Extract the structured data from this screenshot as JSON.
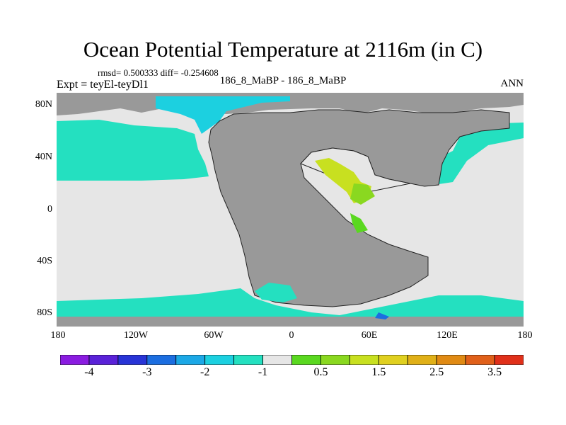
{
  "title": "Ocean Potential Temperature at 2116m (in C)",
  "stats": "rmsd= 0.500333 diff= -0.254608",
  "expt": "Expt = teyEl-teyDl1",
  "case_label": "186_8_MaBP - 186_8_MaBP",
  "season": "ANN",
  "lat_labels": [
    "80N",
    "40N",
    "0",
    "40S",
    "80S"
  ],
  "lon_labels": [
    "180",
    "120W",
    "60W",
    "0",
    "60E",
    "120E",
    "180"
  ],
  "colorbar": {
    "labels": [
      "-4",
      "-3",
      "-2",
      "-1",
      "0.5",
      "1.5",
      "2.5",
      "3.5"
    ],
    "colors": [
      "#8a1ce0",
      "#5a22d8",
      "#2834d6",
      "#1c6ee0",
      "#1ca8e6",
      "#1cd0e0",
      "#24e0c0",
      "#e6e6e6",
      "#5ad820",
      "#8ad820",
      "#c8e020",
      "#e0d020",
      "#e0b018",
      "#e08a14",
      "#e0601a",
      "#e0301a"
    ]
  },
  "map_colors": {
    "land": "#999999",
    "neutral": "#e6e6e6",
    "cold": "#24e0c0",
    "colder": "#1cd0e0",
    "deep_cold": "#1c6ee0",
    "warm_light": "#5ad820",
    "warm": "#8ad820",
    "warmer": "#c8e020"
  }
}
